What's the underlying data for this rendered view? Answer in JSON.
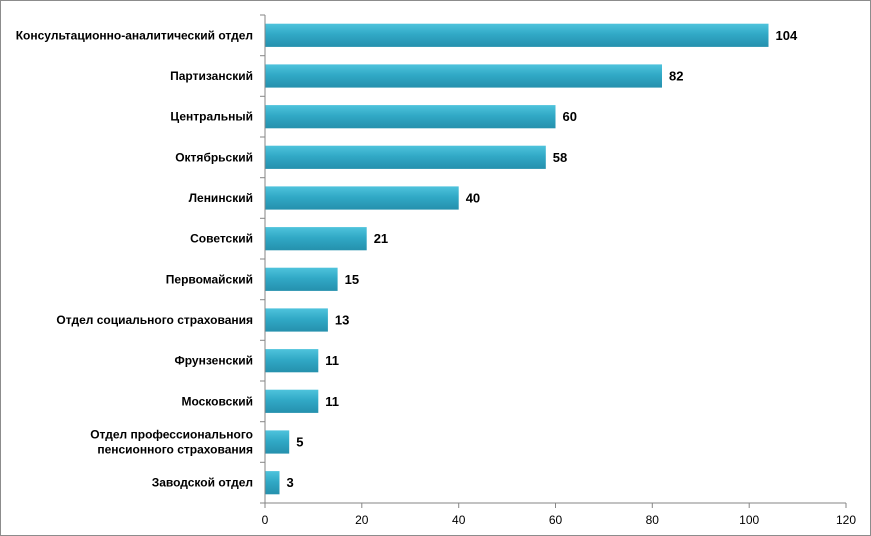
{
  "chart_data": {
    "type": "bar",
    "orientation": "horizontal",
    "categories": [
      [
        "Консультационно-аналитический отдел"
      ],
      [
        "Партизанский"
      ],
      [
        "Центральный"
      ],
      [
        "Октябрьский"
      ],
      [
        "Ленинский"
      ],
      [
        "Советский"
      ],
      [
        "Первомайский"
      ],
      [
        "Отдел  социального страхования"
      ],
      [
        "Фрунзенский"
      ],
      [
        "Московский"
      ],
      [
        "Отдел  профессионального",
        "пенсионного страхования"
      ],
      [
        "Заводской отдел"
      ]
    ],
    "values": [
      104,
      82,
      60,
      58,
      40,
      21,
      15,
      13,
      11,
      11,
      5,
      3
    ],
    "xlim": [
      0,
      120
    ],
    "xticks": [
      0,
      20,
      40,
      60,
      80,
      100,
      120
    ],
    "title": "",
    "xlabel": "",
    "ylabel": "",
    "grid": false,
    "legend": "none",
    "colors": {
      "bar_top": "#4ec3dc",
      "bar_mid": "#31a9c6",
      "bar_bottom": "#2590ad",
      "axis": "#868686"
    }
  }
}
